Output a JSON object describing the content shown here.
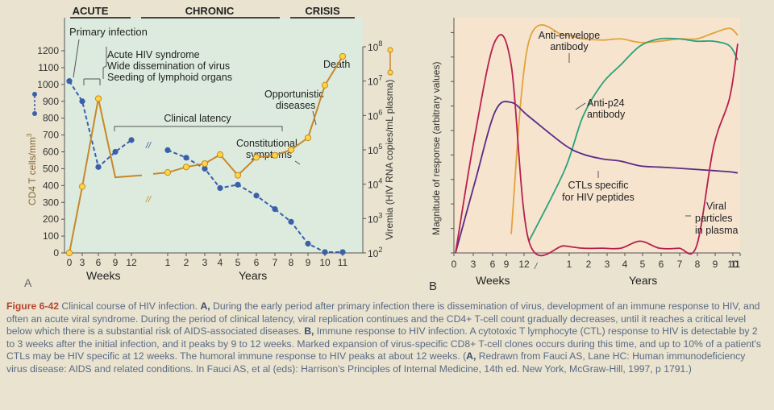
{
  "panelA": {
    "letter": "A",
    "phases": [
      "ACUTE",
      "CHRONIC",
      "CRISIS"
    ],
    "ylabel_left": "CD4 T cells/mm",
    "ylabel_left_sup": "3",
    "ylabel_right": "Viremia (HIV RNA copies/mL plasma)",
    "xlabel_weeks": "Weeks",
    "xlabel_years": "Years",
    "left_ticks": [
      "0",
      "100",
      "200",
      "300",
      "400",
      "500",
      "600",
      "700",
      "800",
      "900",
      "1000",
      "1100",
      "1200"
    ],
    "right_ticks": [
      "10",
      "10",
      "10",
      "10",
      "10",
      "10",
      "10"
    ],
    "right_ticks_sup": [
      "2",
      "3",
      "4",
      "5",
      "6",
      "7",
      "8"
    ],
    "week_ticks": [
      "0",
      "3",
      "6",
      "9",
      "12"
    ],
    "year_ticks": [
      "1",
      "2",
      "3",
      "4",
      "5",
      "6",
      "7",
      "8",
      "9",
      "10",
      "11"
    ],
    "annotations": {
      "primary_infection": "Primary infection",
      "acute_1": "Acute HIV syndrome",
      "acute_2": "Wide dissemination of virus",
      "acute_3": "Seeding of lymphoid organs",
      "latency": "Clinical latency",
      "death": "Death",
      "oi_1": "Opportunistic",
      "oi_2": "diseases",
      "cs_1": "Constitutional",
      "cs_2": "symptoms"
    }
  },
  "panelB": {
    "letter": "B",
    "ylabel": "Magnitude of response (arbitrary values)",
    "xlabel_weeks": "Weeks",
    "xlabel_years": "Years",
    "week_ticks": [
      "0",
      "3",
      "6",
      "9",
      "12"
    ],
    "year_ticks": [
      "1",
      "2",
      "3",
      "4",
      "5",
      "6",
      "7",
      "8",
      "9",
      "10",
      "11"
    ],
    "annotations": {
      "env_1": "Anti-envelope",
      "env_2": "antibody",
      "p24_1": "Anti-p24",
      "p24_2": "antibody",
      "ctl_1": "CTLs specific",
      "ctl_2": "for HIV peptides",
      "vir_1": "Viral",
      "vir_2": "particles",
      "vir_3": "in plasma"
    }
  },
  "colors": {
    "cd4": "#3a5fab",
    "viremia": "#c8882a",
    "marker_fill": "#ffd640",
    "env": "#e4a236",
    "p24": "#2aa27b",
    "ctl": "#5b2a86",
    "viral": "#b81f4e",
    "panelA_bg": "#dcebdd",
    "panelB_bg": "#f6e4cf"
  },
  "chart_data": [
    {
      "type": "line",
      "panel": "A",
      "x": [
        "0w",
        "3w",
        "6w",
        "9w",
        "12w",
        "1y",
        "2y",
        "3y",
        "4y",
        "5y",
        "6y",
        "7y",
        "8y",
        "9y",
        "10y",
        "11y"
      ],
      "series": [
        {
          "name": "CD4 T cells",
          "axis": "left",
          "values": [
            1020,
            900,
            510,
            600,
            670,
            610,
            565,
            500,
            385,
            405,
            340,
            260,
            185,
            55,
            5,
            5
          ]
        },
        {
          "name": "Viremia",
          "axis": "right_log10",
          "values": [
            2.0,
            3.93,
            6.49,
            4.2,
            null,
            4.34,
            4.5,
            4.6,
            4.86,
            4.26,
            4.78,
            4.84,
            5.0,
            5.35,
            6.88,
            7.72
          ]
        }
      ],
      "ylim_left": [
        0,
        1200
      ],
      "ylim_right_log10": [
        2,
        8
      ],
      "xlabel": [
        "Weeks",
        "Years"
      ]
    },
    {
      "type": "line",
      "panel": "B",
      "x": [
        "0w",
        "3w",
        "6w",
        "9w",
        "12w",
        "1y",
        "2y",
        "3y",
        "4y",
        "5y",
        "6y",
        "7y",
        "8y",
        "9y",
        "10y",
        "11y"
      ],
      "series": [
        {
          "name": "Anti-envelope antibody",
          "values": [
            null,
            null,
            null,
            0.08,
            0.9,
            0.925,
            0.91,
            0.905,
            0.91,
            0.895,
            0.9,
            0.91,
            0.91,
            0.935,
            0.955,
            0.925
          ]
        },
        {
          "name": "Anti-p24 antibody",
          "values": [
            null,
            null,
            null,
            null,
            0.05,
            0.35,
            0.58,
            0.72,
            0.8,
            0.88,
            0.91,
            0.91,
            0.9,
            0.9,
            0.88,
            0.82
          ]
        },
        {
          "name": "CTLs specific for HIV peptides",
          "values": [
            0.0,
            0.3,
            0.6,
            0.64,
            0.58,
            0.46,
            0.42,
            0.4,
            0.39,
            0.37,
            0.365,
            0.36,
            0.355,
            0.35,
            0.345,
            0.34
          ]
        },
        {
          "name": "Viral particles in plasma",
          "values": [
            0.0,
            0.5,
            0.9,
            0.8,
            0.05,
            0.03,
            0.02,
            0.02,
            0.02,
            0.05,
            0.02,
            0.02,
            0.03,
            0.45,
            0.66,
            0.89
          ]
        }
      ],
      "ylim": [
        0,
        1
      ],
      "ylabel": "Magnitude of response (arbitrary values)",
      "xlabel": [
        "Weeks",
        "Years"
      ]
    }
  ],
  "caption": {
    "fig_label": "Figure 6-42",
    "part1": " Clinical course of HIV infection. ",
    "A_label": "A,",
    "part2": " During the early period after primary infection there is dissemination of virus, development of an immune response to HIV, and often an acute viral syndrome. During the period of clinical latency, viral replication continues and the CD4+ T-cell count gradually decreases, until it reaches a critical level below which there is a substantial risk of AIDS-associated diseases. ",
    "B_label": "B,",
    "part3": " Immune response to HIV infection. A cytotoxic T lymphocyte (CTL) response to HIV is detectable by 2 to 3 weeks after the initial infection, and it peaks by 9 to 12 weeks. Marked expansion of virus-specific CD8+ T-cell clones occurs during this time, and up to 10% of a patient's CTLs may be HIV specific at 12 weeks. The humoral immune response to HIV peaks at about 12 weeks. (",
    "A_label2": "A,",
    "part4": " Redrawn from Fauci AS, Lane HC: Human immunodeficiency virus disease: AIDS and related conditions. In Fauci AS, et al (eds): Harrison's Principles of Internal Medicine, 14th ed. New York, McGraw-Hill, 1997, p 1791.)"
  }
}
